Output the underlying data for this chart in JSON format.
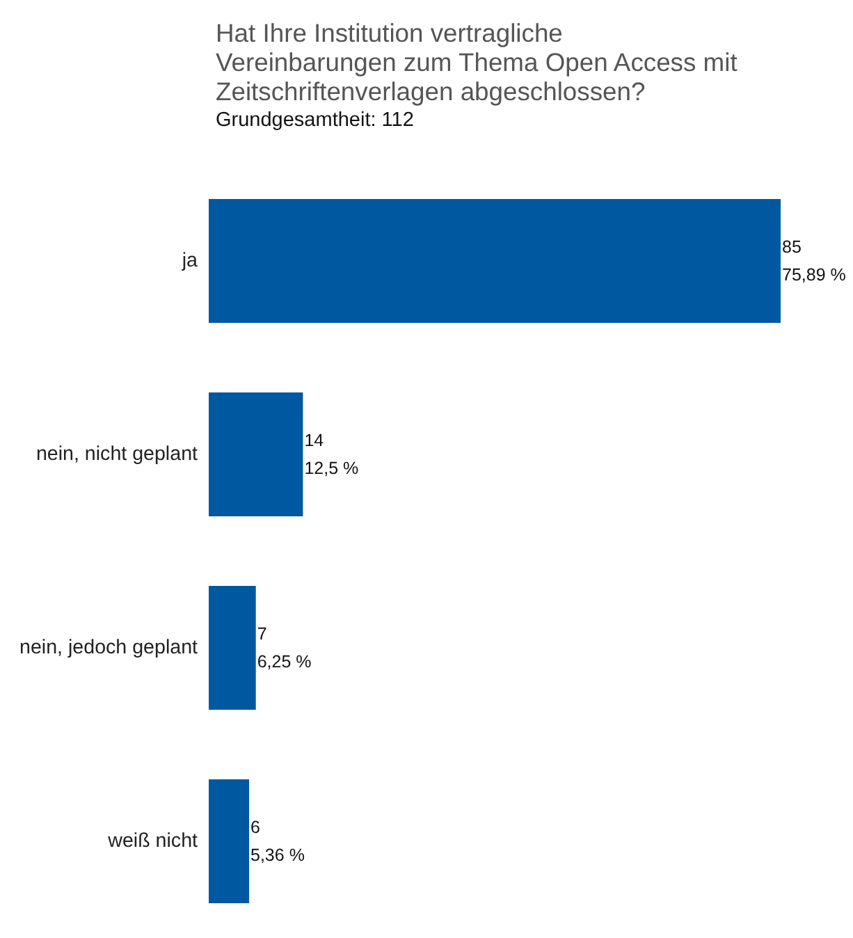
{
  "chart_data": {
    "type": "bar",
    "orientation": "horizontal",
    "title": "Hat Ihre Institution vertragliche Vereinbarungen zum Thema Open Access mit Zeitschriftenverlagen abgeschlossen?",
    "subtitle": "Grundgesamtheit: 112",
    "categories": [
      "ja",
      "nein, nicht geplant",
      "nein, jedoch geplant",
      "weiß nicht"
    ],
    "values": [
      85,
      14,
      7,
      6
    ],
    "value_labels": [
      "85\n75,89 %",
      "14\n12,5 %",
      "7\n6,25 %",
      "6\n5,36 %"
    ],
    "color": "#0059a0",
    "tick_labels": "y"
  }
}
